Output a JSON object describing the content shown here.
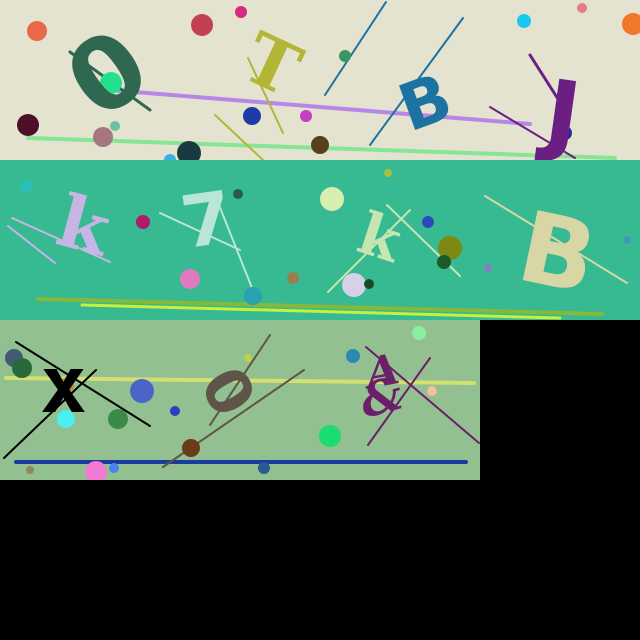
{
  "panels": [
    {
      "id": "panel-1",
      "background": "#e3e3cf",
      "characters": [
        {
          "text": "0",
          "color": "#2f6750"
        },
        {
          "text": "T",
          "color": "#b3b536"
        },
        {
          "text": "B",
          "color": "#1c73a1"
        },
        {
          "text": "J",
          "color": "#6b1f82"
        }
      ]
    },
    {
      "id": "panel-2",
      "background": "#37b992",
      "characters": [
        {
          "text": "k",
          "color": "#c6b6e6"
        },
        {
          "text": "7",
          "color": "#b9e6d6"
        },
        {
          "text": "k",
          "color": "#c6e6b0"
        },
        {
          "text": "B",
          "color": "#d9d6a6"
        }
      ]
    },
    {
      "id": "panel-3",
      "background": "#93c090",
      "characters": [
        {
          "text": "x",
          "color": "#000000"
        },
        {
          "text": "0",
          "color": "#5e5448"
        },
        {
          "text": "A",
          "color": "#6b1f6b"
        },
        {
          "text": "&",
          "color": "#6b1f6b"
        }
      ]
    }
  ]
}
